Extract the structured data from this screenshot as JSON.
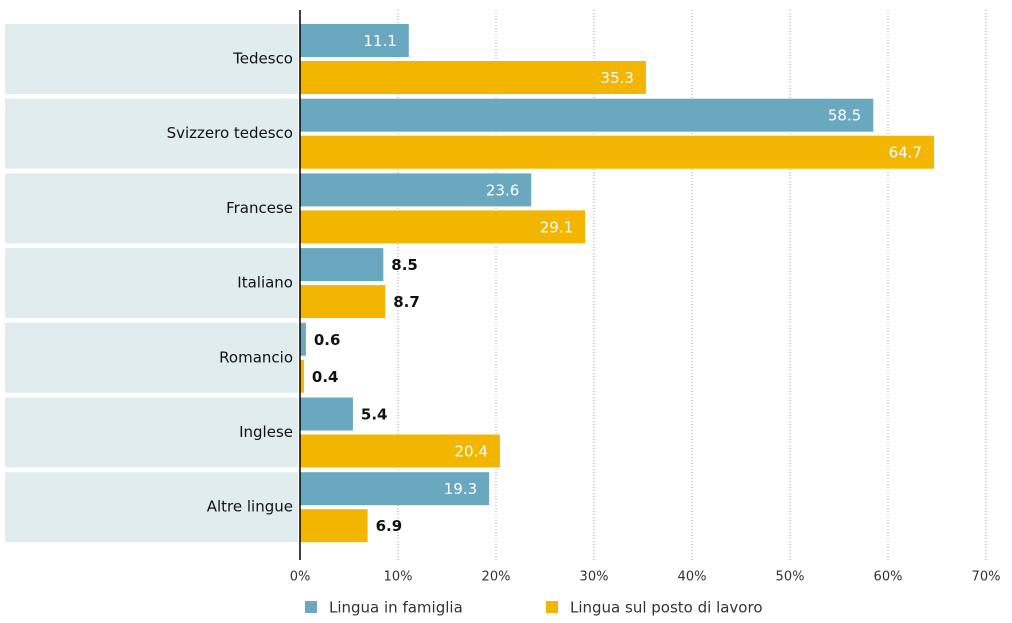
{
  "chart_data": {
    "type": "bar",
    "orientation": "horizontal",
    "categories": [
      "Tedesco",
      "Svizzero tedesco",
      "Francese",
      "Italiano",
      "Romancio",
      "Inglese",
      "Altre lingue"
    ],
    "series": [
      {
        "name": "Lingua in famiglia",
        "color": "#6aa8bf",
        "values": [
          11.1,
          58.5,
          23.6,
          8.5,
          0.6,
          5.4,
          19.3
        ]
      },
      {
        "name": "Lingua sul posto di lavoro",
        "color": "#f2b600",
        "values": [
          35.3,
          64.7,
          29.1,
          8.7,
          0.4,
          20.4,
          6.9
        ]
      }
    ],
    "xlim": [
      0,
      70
    ],
    "xticks": [
      {
        "value": 0,
        "label": "0%"
      },
      {
        "value": 10,
        "label": "10%"
      },
      {
        "value": 20,
        "label": "20%"
      },
      {
        "value": 30,
        "label": "30%"
      },
      {
        "value": 40,
        "label": "40%"
      },
      {
        "value": 50,
        "label": "50%"
      },
      {
        "value": 60,
        "label": "60%"
      },
      {
        "value": 70,
        "label": "70%"
      }
    ],
    "grid": true,
    "legend": "bottom"
  }
}
